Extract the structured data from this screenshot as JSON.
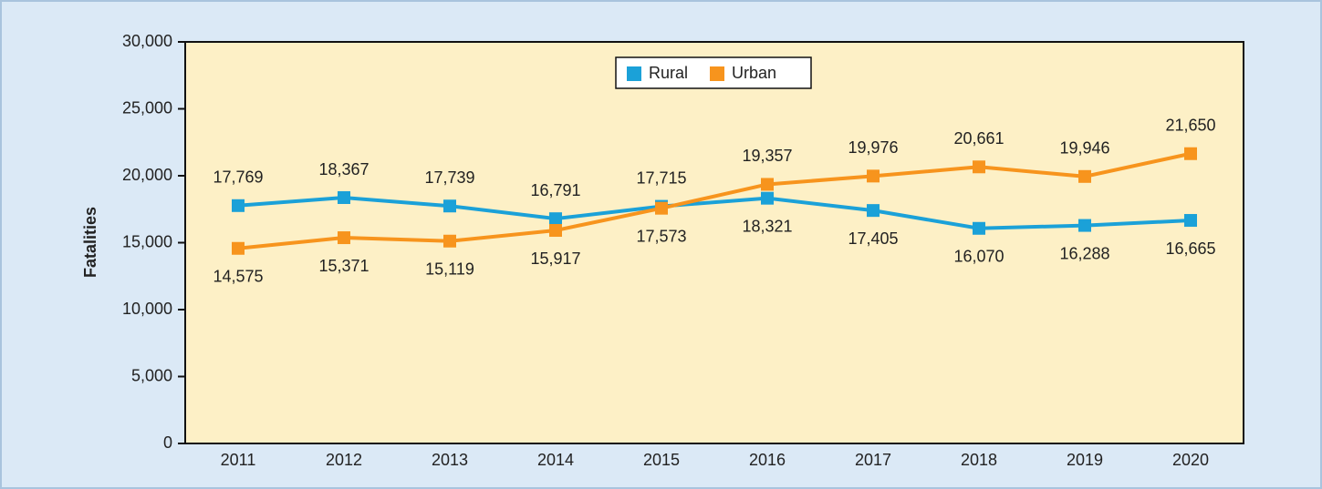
{
  "chart_data": {
    "type": "line",
    "y_label": "Fatalities",
    "categories": [
      "2011",
      "2012",
      "2013",
      "2014",
      "2015",
      "2016",
      "2017",
      "2018",
      "2019",
      "2020"
    ],
    "series": [
      {
        "name": "Rural",
        "color": "#1ba1d8",
        "values": [
          17769,
          18367,
          17739,
          16791,
          17715,
          18321,
          17405,
          16070,
          16288,
          16665
        ],
        "value_labels": [
          "17,769",
          "18,367",
          "17,739",
          "16,791",
          "17,715",
          "18,321",
          "17,405",
          "16,070",
          "16,288",
          "16,665"
        ]
      },
      {
        "name": "Urban",
        "color": "#f7941d",
        "values": [
          14575,
          15371,
          15119,
          15917,
          17573,
          19357,
          19976,
          20661,
          19946,
          21650
        ],
        "value_labels": [
          "14,575",
          "15,371",
          "15,119",
          "15,917",
          "17,573",
          "19,357",
          "19,976",
          "20,661",
          "19,946",
          "21,650"
        ]
      }
    ],
    "ylim": [
      0,
      30000
    ],
    "yticks": [
      0,
      {
        "value": 5000,
        "label": "5,000"
      },
      {
        "value": 10000,
        "label": "10,000"
      },
      {
        "value": 15000,
        "label": "15,000"
      },
      {
        "value": 20000,
        "label": "20,000"
      },
      {
        "value": 25000,
        "label": "25,000"
      },
      {
        "value": 30000,
        "label": "30,000"
      }
    ],
    "legend": "top",
    "grid": false
  }
}
